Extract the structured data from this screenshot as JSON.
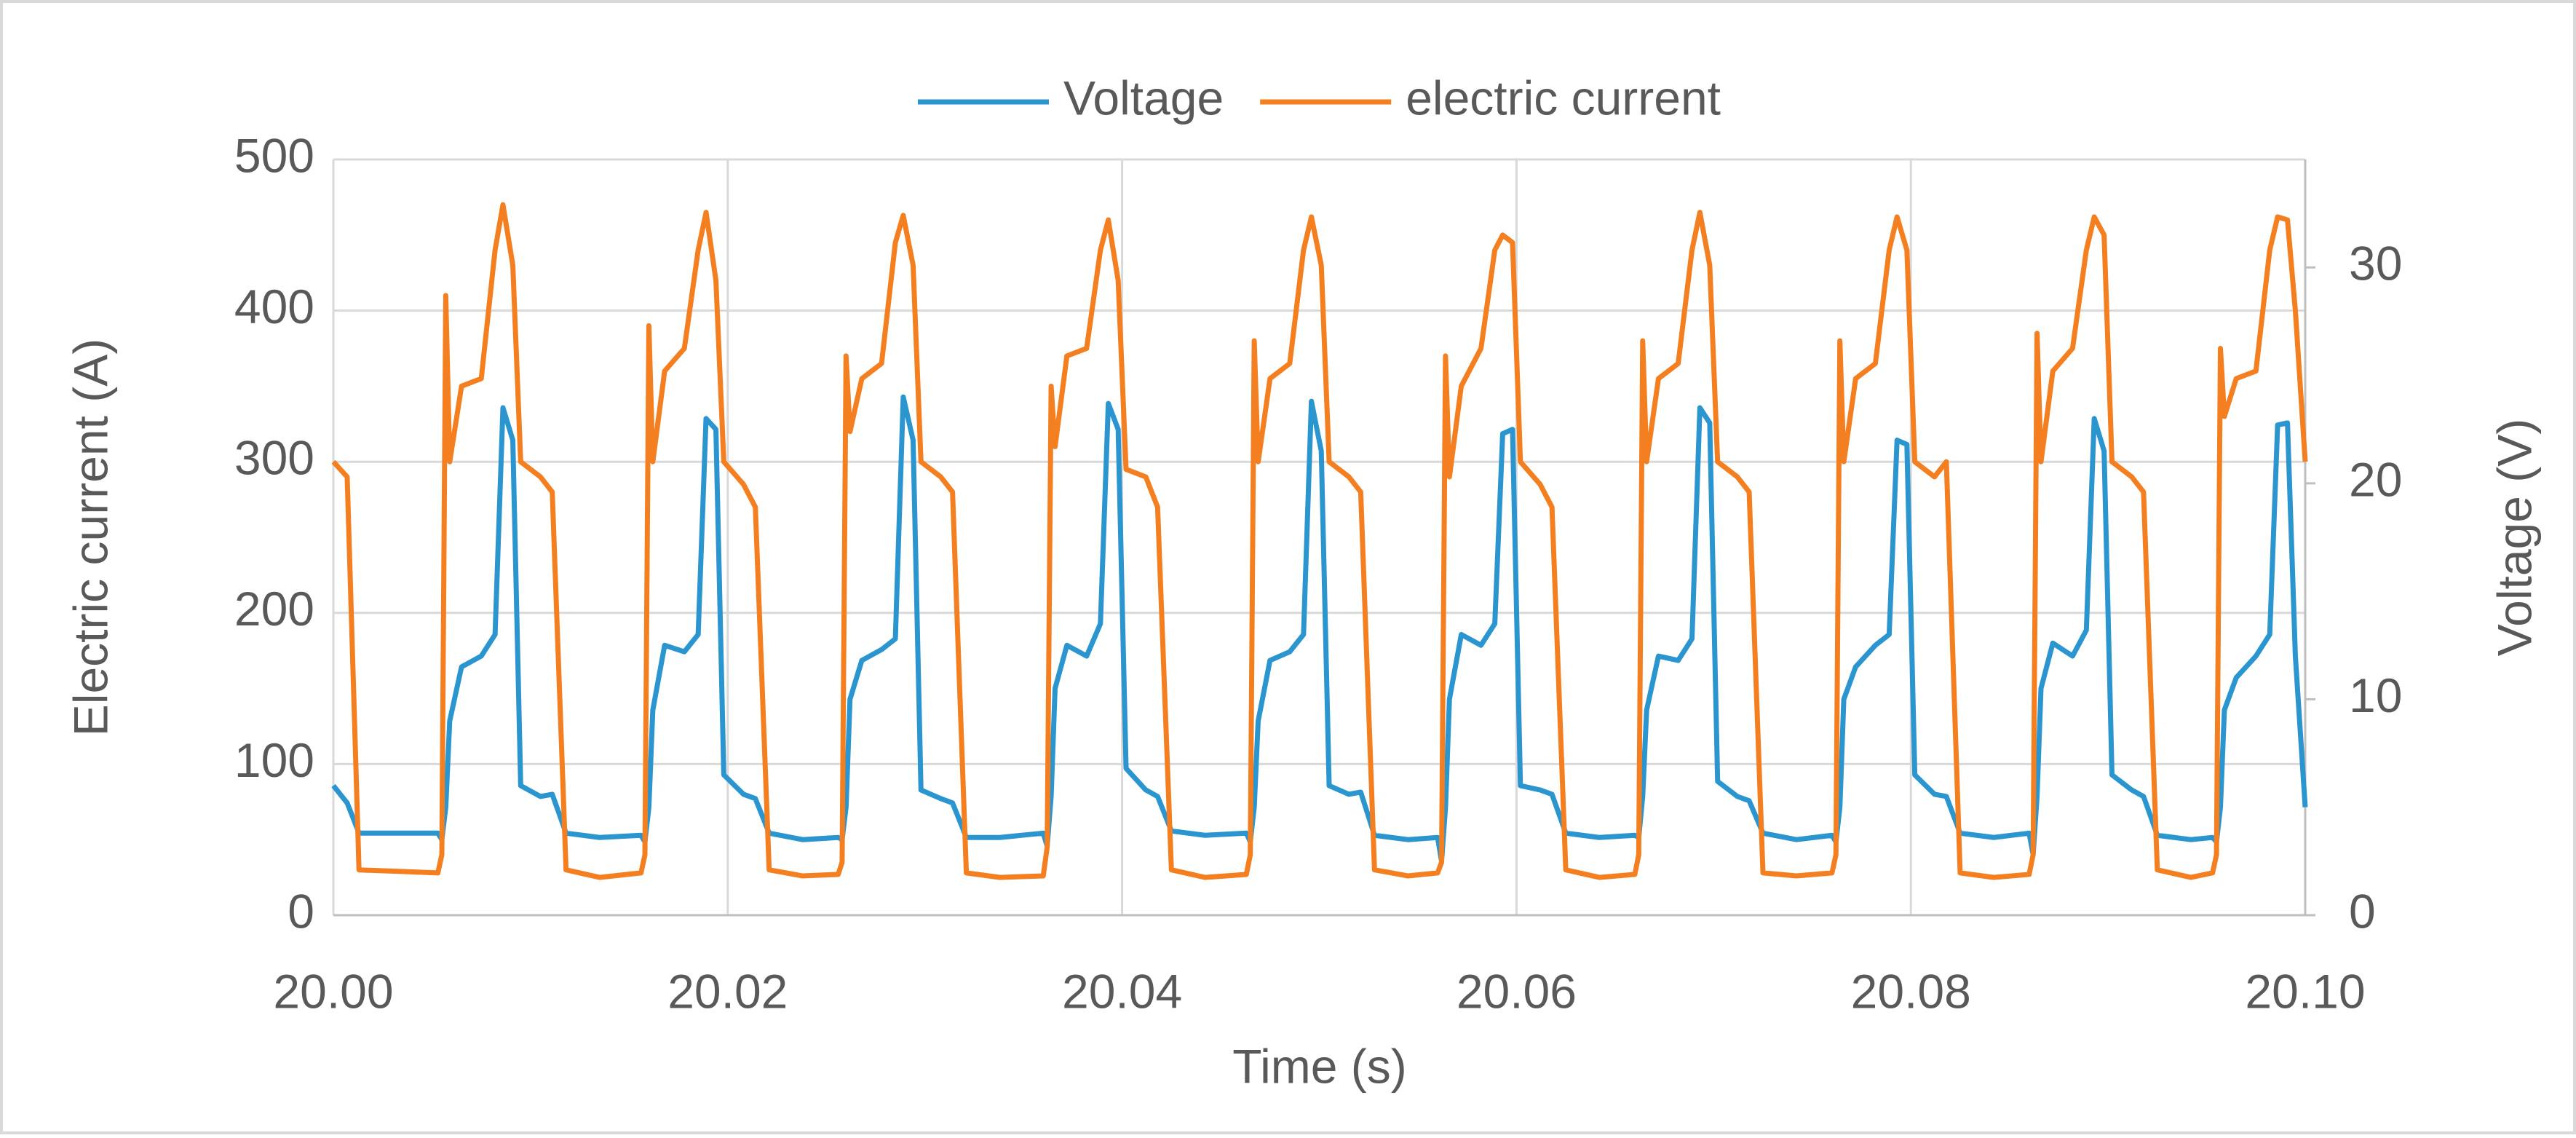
{
  "chart_data": {
    "type": "line",
    "xlabel": "Time (s)",
    "ylabel": "Electric current (A)",
    "y2label": "Voltage  (V)",
    "xlim": [
      20.0,
      20.1
    ],
    "xticks": [
      {
        "value": 20.0,
        "label": "20.00"
      },
      20.02,
      20.04,
      20.06,
      20.08,
      {
        "value": 20.1,
        "label": "20.10"
      }
    ],
    "ylim": [
      0,
      500
    ],
    "yticks": [
      0,
      100,
      200,
      300,
      400,
      500
    ],
    "y2lim": [
      0,
      35
    ],
    "y2ticks": [
      0,
      10,
      20,
      30
    ],
    "grid": true,
    "legend": "top",
    "x": [
      20.0,
      20.0007,
      20.0013,
      20.0053,
      20.0055,
      20.0057,
      20.0059,
      20.0065,
      20.0075,
      20.0082,
      20.0086,
      20.0091,
      20.0095,
      20.0105,
      20.0111,
      20.0118,
      20.0135,
      20.0156,
      20.0158,
      20.016,
      20.0162,
      20.0168,
      20.0178,
      20.0185,
      20.0189,
      20.0194,
      20.0198,
      20.0208,
      20.0214,
      20.0221,
      20.0238,
      20.0256,
      20.0258,
      20.026,
      20.0262,
      20.0268,
      20.0278,
      20.0285,
      20.0289,
      20.0294,
      20.0298,
      20.0308,
      20.0314,
      20.0321,
      20.0338,
      20.036,
      20.0362,
      20.0364,
      20.0366,
      20.0372,
      20.0382,
      20.0389,
      20.0393,
      20.0398,
      20.0402,
      20.0412,
      20.0418,
      20.0425,
      20.0442,
      20.0463,
      20.0465,
      20.0467,
      20.0469,
      20.0475,
      20.0485,
      20.0492,
      20.0496,
      20.0501,
      20.0505,
      20.0515,
      20.0521,
      20.0528,
      20.0545,
      20.056,
      20.0562,
      20.0564,
      20.0566,
      20.0572,
      20.0582,
      20.0589,
      20.0593,
      20.0598,
      20.0602,
      20.0612,
      20.0618,
      20.0625,
      20.0642,
      20.066,
      20.0662,
      20.0664,
      20.0666,
      20.0672,
      20.0682,
      20.0689,
      20.0693,
      20.0698,
      20.0702,
      20.0712,
      20.0718,
      20.0725,
      20.0742,
      20.076,
      20.0762,
      20.0764,
      20.0766,
      20.0772,
      20.0782,
      20.0789,
      20.0793,
      20.0798,
      20.0802,
      20.0812,
      20.0818,
      20.0825,
      20.0842,
      20.086,
      20.0862,
      20.0864,
      20.0866,
      20.0872,
      20.0882,
      20.0889,
      20.0893,
      20.0898,
      20.0902,
      20.0912,
      20.0918,
      20.0925,
      20.0942,
      20.0953,
      20.0955,
      20.0957,
      20.0959,
      20.0965,
      20.0975,
      20.0982,
      20.0986,
      20.0991,
      20.0995,
      20.1
    ],
    "series": [
      {
        "name": "Voltage",
        "color": "#2b95cf",
        "axis": "y2",
        "values": [
          6,
          5.2,
          3.8,
          3.8,
          3.5,
          5,
          9,
          11.5,
          12,
          13,
          23.5,
          22,
          6,
          5.5,
          5.6,
          3.8,
          3.6,
          3.7,
          3.4,
          5,
          9.5,
          12.5,
          12.2,
          13,
          23,
          22.5,
          6.5,
          5.6,
          5.4,
          3.8,
          3.5,
          3.6,
          3.5,
          5,
          10,
          11.8,
          12.3,
          12.8,
          24,
          22,
          5.8,
          5.4,
          5.2,
          3.6,
          3.6,
          3.8,
          3.2,
          5.5,
          10.5,
          12.5,
          12,
          13.5,
          23.7,
          22.5,
          6.8,
          5.8,
          5.5,
          3.9,
          3.7,
          3.8,
          3.4,
          5,
          9,
          11.8,
          12.2,
          13,
          23.8,
          21.5,
          6,
          5.6,
          5.7,
          3.7,
          3.5,
          3.6,
          2.5,
          5,
          10,
          13,
          12.5,
          13.5,
          22.3,
          22.5,
          6,
          5.8,
          5.6,
          3.8,
          3.6,
          3.7,
          3.6,
          5.5,
          9.5,
          12,
          11.8,
          12.8,
          23.5,
          22.8,
          6.2,
          5.5,
          5.3,
          3.8,
          3.5,
          3.7,
          3.4,
          5,
          10,
          11.5,
          12.5,
          13,
          22,
          21.8,
          6.5,
          5.6,
          5.5,
          3.8,
          3.6,
          3.8,
          2.8,
          5.5,
          10.5,
          12.6,
          12,
          13.2,
          23,
          21.5,
          6.5,
          5.8,
          5.5,
          3.7,
          3.5,
          3.6,
          3.4,
          5,
          9.5,
          11,
          12,
          13,
          22.7,
          22.8,
          12,
          5
        ]
      },
      {
        "name": "electric current",
        "color": "#f47f20",
        "axis": "y",
        "values": [
          300,
          290,
          30,
          28,
          40,
          410,
          300,
          350,
          355,
          440,
          470,
          430,
          300,
          290,
          280,
          30,
          25,
          28,
          40,
          390,
          300,
          360,
          375,
          440,
          465,
          420,
          300,
          285,
          270,
          30,
          26,
          27,
          35,
          370,
          320,
          355,
          365,
          445,
          463,
          430,
          300,
          290,
          280,
          28,
          25,
          26,
          45,
          350,
          310,
          370,
          375,
          440,
          460,
          420,
          295,
          290,
          270,
          30,
          25,
          27,
          40,
          380,
          300,
          355,
          365,
          440,
          462,
          430,
          300,
          290,
          280,
          30,
          26,
          28,
          35,
          370,
          290,
          350,
          375,
          440,
          450,
          445,
          300,
          285,
          270,
          30,
          25,
          27,
          40,
          380,
          300,
          355,
          365,
          440,
          465,
          430,
          300,
          290,
          280,
          28,
          26,
          28,
          40,
          380,
          300,
          355,
          365,
          440,
          462,
          440,
          300,
          290,
          300,
          28,
          25,
          27,
          40,
          385,
          300,
          360,
          375,
          440,
          462,
          450,
          300,
          290,
          280,
          30,
          25,
          28,
          40,
          375,
          330,
          355,
          360,
          440,
          462,
          460,
          400,
          300
        ]
      }
    ]
  }
}
